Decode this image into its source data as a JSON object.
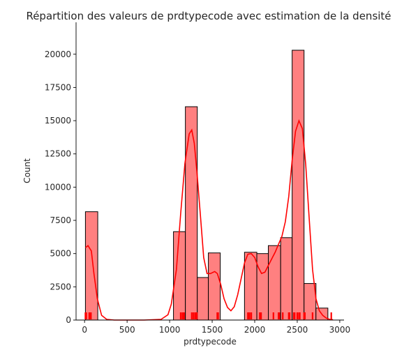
{
  "chart_data": {
    "type": "bar",
    "title": "Répartition des valeurs de prdtypecode avec estimation de la densité",
    "xlabel": "prdtypecode",
    "ylabel": "Count",
    "xlim": [
      -100,
      3050
    ],
    "ylim": [
      0,
      22400
    ],
    "xticks": [
      "0",
      "500",
      "1000",
      "1500",
      "2000",
      "2500",
      "3000"
    ],
    "yticks": [
      "0",
      "2500",
      "5000",
      "7500",
      "10000",
      "12500",
      "15000",
      "17500",
      "20000"
    ],
    "grid": false,
    "bar_color": "#ff8080",
    "edge_color": "#000000",
    "kde_color": "#ff0000",
    "bins": [
      {
        "x0": 10,
        "x1": 155,
        "count": 8150
      },
      {
        "x0": 1045,
        "x1": 1185,
        "count": 6650
      },
      {
        "x0": 1185,
        "x1": 1325,
        "count": 16050
      },
      {
        "x0": 1325,
        "x1": 1455,
        "count": 3200
      },
      {
        "x0": 1455,
        "x1": 1595,
        "count": 5050
      },
      {
        "x0": 1880,
        "x1": 2025,
        "count": 5100
      },
      {
        "x0": 2025,
        "x1": 2160,
        "count": 5000
      },
      {
        "x0": 2160,
        "x1": 2305,
        "count": 5600
      },
      {
        "x0": 2305,
        "x1": 2440,
        "count": 6200
      },
      {
        "x0": 2440,
        "x1": 2580,
        "count": 20300
      },
      {
        "x0": 2580,
        "x1": 2720,
        "count": 2750
      },
      {
        "x0": 2720,
        "x1": 2860,
        "count": 900
      }
    ],
    "kde": {
      "x": [
        10,
        40,
        80,
        110,
        150,
        200,
        260,
        350,
        500,
        700,
        900,
        980,
        1020,
        1080,
        1130,
        1180,
        1230,
        1260,
        1290,
        1320,
        1360,
        1400,
        1440,
        1480,
        1530,
        1560,
        1600,
        1640,
        1680,
        1720,
        1760,
        1800,
        1840,
        1880,
        1920,
        1960,
        2000,
        2040,
        2080,
        2120,
        2160,
        2200,
        2240,
        2280,
        2320,
        2360,
        2400,
        2440,
        2480,
        2520,
        2560,
        2600,
        2640,
        2680,
        2720,
        2760,
        2800,
        2840,
        2880,
        2920
      ],
      "y": [
        5450,
        5600,
        5200,
        3500,
        1600,
        350,
        50,
        0,
        0,
        0,
        50,
        400,
        1200,
        3800,
        8000,
        11800,
        14000,
        14300,
        13300,
        11200,
        8000,
        4700,
        3500,
        3500,
        3650,
        3500,
        2700,
        1600,
        950,
        700,
        1000,
        1900,
        3100,
        4300,
        4950,
        5000,
        4700,
        4000,
        3500,
        3600,
        4100,
        4600,
        5100,
        5700,
        6300,
        7400,
        9300,
        12000,
        14200,
        15000,
        14400,
        11700,
        7700,
        3800,
        1600,
        700,
        350,
        150,
        50,
        20
      ]
    },
    "rug": [
      10,
      20,
      55,
      65,
      75,
      1130,
      1150,
      1160,
      1170,
      1260,
      1280,
      1300,
      1310,
      1320,
      1560,
      1570,
      1920,
      1930,
      1940,
      1960,
      2060,
      2075,
      2220,
      2280,
      2290,
      2330,
      2400,
      2410,
      2460,
      2470,
      2500,
      2520,
      2530,
      2580,
      2590,
      2680,
      2900
    ]
  }
}
